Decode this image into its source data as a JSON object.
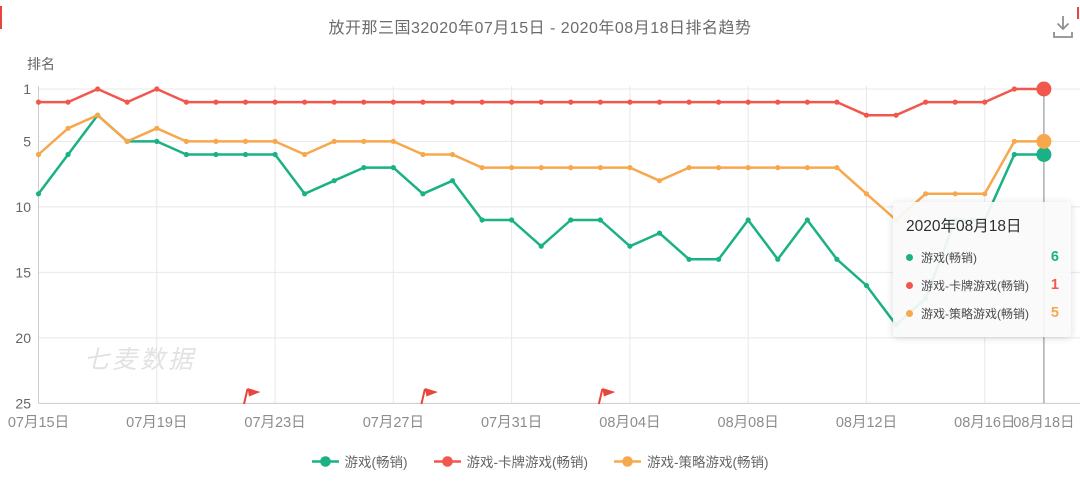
{
  "header": {
    "title": "放开那三国32020年07月15日 - 2020年08月18日排名趋势"
  },
  "icons": {
    "download": "arrow-down-into-tray"
  },
  "watermark": {
    "text": "七麦数据"
  },
  "tooltip": {
    "date": "2020年08月18日",
    "rows": [
      {
        "label": "游戏(畅销)",
        "value": 6,
        "color": "#1ab185"
      },
      {
        "label": "游戏-卡牌游戏(畅销)",
        "value": 1,
        "color": "#f2574d"
      },
      {
        "label": "游戏-策略游戏(畅销)",
        "value": 5,
        "color": "#f7a84d"
      }
    ]
  },
  "legend": {
    "items": [
      {
        "label": "游戏(畅销)",
        "color": "#1ab185"
      },
      {
        "label": "游戏-卡牌游戏(畅销)",
        "color": "#f2574d"
      },
      {
        "label": "游戏-策略游戏(畅销)",
        "color": "#f7a84d"
      }
    ]
  },
  "chart_data": {
    "type": "line",
    "title": "放开那三国32020年07月15日 - 2020年08月18日排名趋势",
    "xlabel": "",
    "ylabel": "排名",
    "y_axis": {
      "name": "排名",
      "ticks": [
        1,
        5,
        10,
        15,
        20,
        25
      ],
      "min": 1,
      "max": 25,
      "inverted": true
    },
    "x_tick_labels": [
      {
        "day": 0,
        "label": "07月15日"
      },
      {
        "day": 4,
        "label": "07月19日"
      },
      {
        "day": 8,
        "label": "07月23日"
      },
      {
        "day": 12,
        "label": "07月27日"
      },
      {
        "day": 16,
        "label": "07月31日"
      },
      {
        "day": 20,
        "label": "08月04日"
      },
      {
        "day": 24,
        "label": "08月08日"
      },
      {
        "day": 28,
        "label": "08月12日"
      },
      {
        "day": 32,
        "label": "08月16日"
      },
      {
        "day": 34,
        "label": "08月18日"
      }
    ],
    "n_points": 35,
    "series": [
      {
        "name": "游戏(畅销)",
        "color": "#1ab185",
        "values": [
          9,
          6,
          3,
          5,
          5,
          6,
          6,
          6,
          6,
          9,
          8,
          7,
          7,
          9,
          8,
          11,
          11,
          13,
          11,
          11,
          13,
          12,
          14,
          14,
          11,
          14,
          11,
          14,
          16,
          19,
          17,
          11,
          11,
          6,
          6
        ]
      },
      {
        "name": "游戏-卡牌游戏(畅销)",
        "color": "#f2574d",
        "values": [
          2,
          2,
          1,
          2,
          1,
          2,
          2,
          2,
          2,
          2,
          2,
          2,
          2,
          2,
          2,
          2,
          2,
          2,
          2,
          2,
          2,
          2,
          2,
          2,
          2,
          2,
          2,
          2,
          3,
          3,
          2,
          2,
          2,
          1,
          1
        ]
      },
      {
        "name": "游戏-策略游戏(畅销)",
        "color": "#f7a84d",
        "values": [
          6,
          4,
          3,
          5,
          4,
          5,
          5,
          5,
          5,
          6,
          5,
          5,
          5,
          6,
          6,
          7,
          7,
          7,
          7,
          7,
          7,
          8,
          7,
          7,
          7,
          7,
          7,
          7,
          9,
          11,
          9,
          9,
          9,
          5,
          5
        ]
      }
    ],
    "emphasis_day": 34,
    "flags": {
      "color": "#e8453c",
      "days": [
        7,
        13,
        19
      ],
      "dates": [
        "07月22日",
        "07月28日",
        "08月03日"
      ]
    },
    "style": {
      "grid_color": "#e8e8e8",
      "axis_color": "#cccccc",
      "pointer_color": "#9a9a9a",
      "x_label_color": "#8c8c8c",
      "y_label_color": "#666666"
    },
    "legend_position": "bottom",
    "grid": true
  }
}
